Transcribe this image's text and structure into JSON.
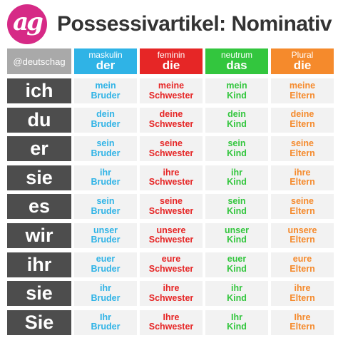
{
  "logo": {
    "text": "ag",
    "color": "#d62a86"
  },
  "title": "Possessivartikel: Nominativ",
  "handle": "@deutschag",
  "pronoun_bg": "#4d4d4d",
  "columns": [
    {
      "top": "maskulin",
      "bottom": "der",
      "color": "#2fb3e6"
    },
    {
      "top": "feminin",
      "bottom": "die",
      "color": "#e62626"
    },
    {
      "top": "neutrum",
      "bottom": "das",
      "color": "#33c63e"
    },
    {
      "top": "Plural",
      "bottom": "die",
      "color": "#f58a2c"
    }
  ],
  "rows": [
    {
      "pronoun": "ich",
      "cells": [
        [
          "mein",
          "Bruder"
        ],
        [
          "meine",
          "Schwester"
        ],
        [
          "mein",
          "Kind"
        ],
        [
          "meine",
          "Eltern"
        ]
      ]
    },
    {
      "pronoun": "du",
      "cells": [
        [
          "dein",
          "Bruder"
        ],
        [
          "deine",
          "Schwester"
        ],
        [
          "dein",
          "Kind"
        ],
        [
          "deine",
          "Eltern"
        ]
      ]
    },
    {
      "pronoun": "er",
      "cells": [
        [
          "sein",
          "Bruder"
        ],
        [
          "seine",
          "Schwester"
        ],
        [
          "sein",
          "Kind"
        ],
        [
          "seine",
          "Eltern"
        ]
      ]
    },
    {
      "pronoun": "sie",
      "cells": [
        [
          "ihr",
          "Bruder"
        ],
        [
          "ihre",
          "Schwester"
        ],
        [
          "ihr",
          "Kind"
        ],
        [
          "ihre",
          "Eltern"
        ]
      ]
    },
    {
      "pronoun": "es",
      "cells": [
        [
          "sein",
          "Bruder"
        ],
        [
          "seine",
          "Schwester"
        ],
        [
          "sein",
          "Kind"
        ],
        [
          "seine",
          "Eltern"
        ]
      ]
    },
    {
      "pronoun": "wir",
      "cells": [
        [
          "unser",
          "Bruder"
        ],
        [
          "unsere",
          "Schwester"
        ],
        [
          "unser",
          "Kind"
        ],
        [
          "unsere",
          "Eltern"
        ]
      ]
    },
    {
      "pronoun": "ihr",
      "cells": [
        [
          "euer",
          "Bruder"
        ],
        [
          "eure",
          "Schwester"
        ],
        [
          "euer",
          "Kind"
        ],
        [
          "eure",
          "Eltern"
        ]
      ]
    },
    {
      "pronoun": "sie",
      "cells": [
        [
          "ihr",
          "Bruder"
        ],
        [
          "ihre",
          "Schwester"
        ],
        [
          "ihr",
          "Kind"
        ],
        [
          "ihre",
          "Eltern"
        ]
      ]
    },
    {
      "pronoun": "Sie",
      "cells": [
        [
          "Ihr",
          "Bruder"
        ],
        [
          "Ihre",
          "Schwester"
        ],
        [
          "Ihr",
          "Kind"
        ],
        [
          "Ihre",
          "Eltern"
        ]
      ]
    }
  ]
}
